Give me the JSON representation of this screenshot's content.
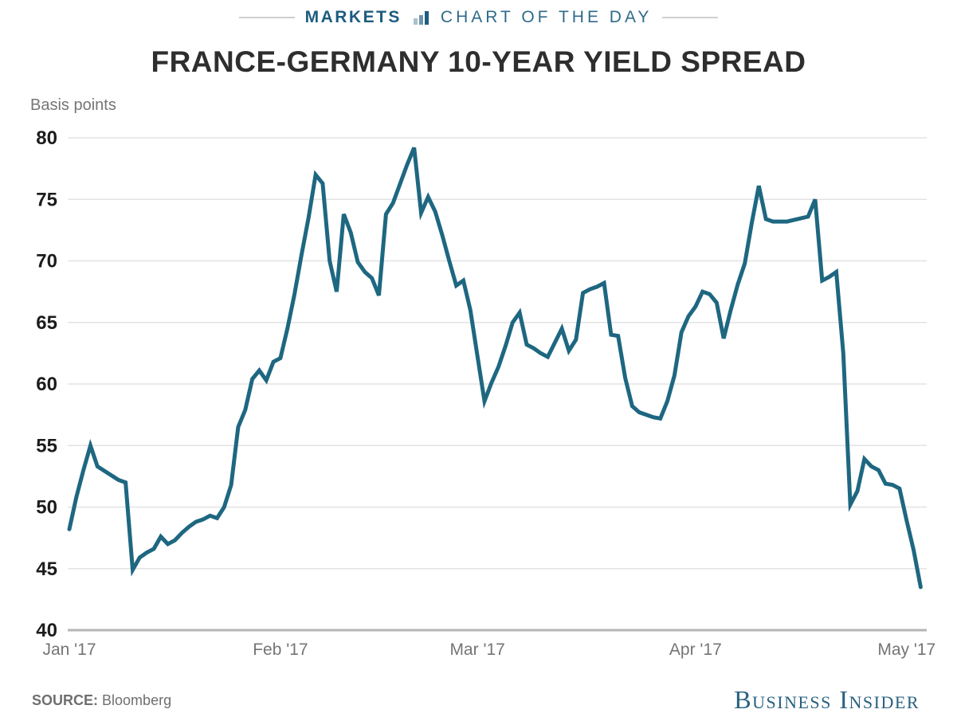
{
  "header": {
    "kicker_left": "MARKETS",
    "kicker_right": "CHART OF THE DAY",
    "icon": "bar-chart-icon"
  },
  "title": "FRANCE-GERMANY 10-YEAR YIELD SPREAD",
  "axis_unit_label": "Basis points",
  "footer": {
    "source_label": "SOURCE:",
    "source_value": "Bloomberg",
    "brand": "Business Insider"
  },
  "colors": {
    "line": "#1e6781",
    "gridline": "#e3e3e3",
    "axis_line": "#b5b5b5",
    "y_tick_text": "#1c1c1c",
    "x_tick_text": "#757575",
    "kicker_dark": "#1d5c80",
    "kicker_light": "#2f6b8a",
    "brand_blue": "#27617f"
  },
  "chart_data": {
    "type": "line",
    "title": "FRANCE-GERMANY 10-YEAR YIELD SPREAD",
    "ylabel": "Basis points",
    "xlabel": "",
    "ylim": [
      40,
      80
    ],
    "y_ticks": [
      40,
      45,
      50,
      55,
      60,
      65,
      70,
      75,
      80
    ],
    "x_tick_labels": [
      "Jan '17",
      "Feb '17",
      "Mar '17",
      "Apr '17",
      "May '17"
    ],
    "x_tick_dates": [
      "2017-01-02",
      "2017-02-01",
      "2017-03-01",
      "2017-04-01",
      "2017-05-01"
    ],
    "x_range": [
      "2017-01-02",
      "2017-05-04"
    ],
    "grid": "horizontal",
    "legend": "none",
    "series": [
      {
        "name": "France-Germany 10-year yield spread (basis points)",
        "points": [
          [
            "2017-01-02",
            48.2
          ],
          [
            "2017-01-03",
            50.8
          ],
          [
            "2017-01-04",
            53.0
          ],
          [
            "2017-01-05",
            55.0
          ],
          [
            "2017-01-06",
            53.3
          ],
          [
            "2017-01-09",
            52.2
          ],
          [
            "2017-01-10",
            52.0
          ],
          [
            "2017-01-11",
            44.9
          ],
          [
            "2017-01-12",
            45.9
          ],
          [
            "2017-01-13",
            46.3
          ],
          [
            "2017-01-14",
            46.6
          ],
          [
            "2017-01-15",
            47.6
          ],
          [
            "2017-01-16",
            47.0
          ],
          [
            "2017-01-17",
            47.3
          ],
          [
            "2017-01-18",
            47.9
          ],
          [
            "2017-01-19",
            48.4
          ],
          [
            "2017-01-20",
            48.8
          ],
          [
            "2017-01-21",
            49.0
          ],
          [
            "2017-01-22",
            49.3
          ],
          [
            "2017-01-23",
            49.1
          ],
          [
            "2017-01-24",
            50.0
          ],
          [
            "2017-01-25",
            51.8
          ],
          [
            "2017-01-26",
            56.5
          ],
          [
            "2017-01-27",
            57.9
          ],
          [
            "2017-01-28",
            60.4
          ],
          [
            "2017-01-29",
            61.1
          ],
          [
            "2017-01-30",
            60.3
          ],
          [
            "2017-01-31",
            61.8
          ],
          [
            "2017-02-01",
            62.1
          ],
          [
            "2017-02-02",
            64.5
          ],
          [
            "2017-02-03",
            67.3
          ],
          [
            "2017-02-04",
            70.5
          ],
          [
            "2017-02-05",
            73.5
          ],
          [
            "2017-02-06",
            77.0
          ],
          [
            "2017-02-07",
            76.3
          ],
          [
            "2017-02-08",
            70.0
          ],
          [
            "2017-02-09",
            67.5
          ],
          [
            "2017-02-10",
            73.8
          ],
          [
            "2017-02-11",
            72.3
          ],
          [
            "2017-02-12",
            69.9
          ],
          [
            "2017-02-13",
            69.1
          ],
          [
            "2017-02-14",
            68.6
          ],
          [
            "2017-02-15",
            67.2
          ],
          [
            "2017-02-16",
            73.8
          ],
          [
            "2017-02-17",
            74.7
          ],
          [
            "2017-02-19",
            77.8
          ],
          [
            "2017-02-20",
            79.2
          ],
          [
            "2017-02-21",
            73.9
          ],
          [
            "2017-02-22",
            75.2
          ],
          [
            "2017-02-23",
            74.0
          ],
          [
            "2017-02-24",
            72.1
          ],
          [
            "2017-02-25",
            70.0
          ],
          [
            "2017-02-26",
            68.0
          ],
          [
            "2017-02-27",
            68.4
          ],
          [
            "2017-02-28",
            66.0
          ],
          [
            "2017-03-01",
            62.3
          ],
          [
            "2017-03-02",
            58.6
          ],
          [
            "2017-03-03",
            60.1
          ],
          [
            "2017-03-04",
            61.4
          ],
          [
            "2017-03-05",
            63.1
          ],
          [
            "2017-03-06",
            65.0
          ],
          [
            "2017-03-07",
            65.8
          ],
          [
            "2017-03-08",
            63.2
          ],
          [
            "2017-03-09",
            62.9
          ],
          [
            "2017-03-10",
            62.5
          ],
          [
            "2017-03-11",
            62.2
          ],
          [
            "2017-03-13",
            64.5
          ],
          [
            "2017-03-14",
            62.7
          ],
          [
            "2017-03-15",
            63.6
          ],
          [
            "2017-03-16",
            67.4
          ],
          [
            "2017-03-17",
            67.7
          ],
          [
            "2017-03-18",
            67.9
          ],
          [
            "2017-03-19",
            68.2
          ],
          [
            "2017-03-20",
            64.0
          ],
          [
            "2017-03-21",
            63.9
          ],
          [
            "2017-03-22",
            60.5
          ],
          [
            "2017-03-23",
            58.2
          ],
          [
            "2017-03-24",
            57.7
          ],
          [
            "2017-03-26",
            57.3
          ],
          [
            "2017-03-27",
            57.2
          ],
          [
            "2017-03-28",
            58.6
          ],
          [
            "2017-03-29",
            60.7
          ],
          [
            "2017-03-30",
            64.2
          ],
          [
            "2017-03-31",
            65.5
          ],
          [
            "2017-04-01",
            66.3
          ],
          [
            "2017-04-02",
            67.5
          ],
          [
            "2017-04-03",
            67.3
          ],
          [
            "2017-04-04",
            66.6
          ],
          [
            "2017-04-05",
            63.7
          ],
          [
            "2017-04-06",
            66.0
          ],
          [
            "2017-04-07",
            68.1
          ],
          [
            "2017-04-08",
            69.8
          ],
          [
            "2017-04-09",
            73.1
          ],
          [
            "2017-04-10",
            76.1
          ],
          [
            "2017-04-11",
            73.4
          ],
          [
            "2017-04-12",
            73.2
          ],
          [
            "2017-04-13",
            73.2
          ],
          [
            "2017-04-14",
            73.2
          ],
          [
            "2017-04-17",
            73.6
          ],
          [
            "2017-04-18",
            75.0
          ],
          [
            "2017-04-19",
            68.4
          ],
          [
            "2017-04-20",
            68.7
          ],
          [
            "2017-04-21",
            69.1
          ],
          [
            "2017-04-22",
            62.5
          ],
          [
            "2017-04-23",
            50.2
          ],
          [
            "2017-04-24",
            51.3
          ],
          [
            "2017-04-25",
            53.9
          ],
          [
            "2017-04-26",
            53.3
          ],
          [
            "2017-04-27",
            53.0
          ],
          [
            "2017-04-28",
            51.9
          ],
          [
            "2017-04-29",
            51.8
          ],
          [
            "2017-04-30",
            51.5
          ],
          [
            "2017-05-01",
            48.9
          ],
          [
            "2017-05-02",
            46.5
          ],
          [
            "2017-05-03",
            43.5
          ]
        ]
      }
    ]
  }
}
